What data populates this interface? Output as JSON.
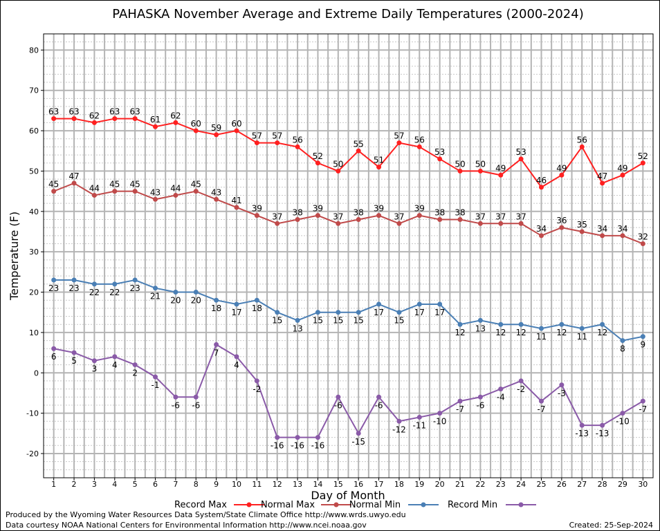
{
  "chart_data": {
    "type": "line",
    "title": "PAHASKA November Average and Extreme Daily Temperatures (2000-2024)",
    "xlabel": "Day of Month",
    "ylabel": "Temperature (F)",
    "x": [
      1,
      2,
      3,
      4,
      5,
      6,
      7,
      8,
      9,
      10,
      11,
      12,
      13,
      14,
      15,
      16,
      17,
      18,
      19,
      20,
      21,
      22,
      23,
      24,
      25,
      26,
      27,
      28,
      29,
      30
    ],
    "xlim": [
      0.5,
      30.5
    ],
    "ylim": [
      -26,
      84
    ],
    "yticks": [
      -20,
      -10,
      0,
      10,
      20,
      30,
      40,
      50,
      60,
      70,
      80
    ],
    "grid": true,
    "legend_position": "bottom",
    "series": [
      {
        "name": "Record Max",
        "color": "#ff2020",
        "label_pos": "above",
        "values": [
          63,
          63,
          62,
          63,
          63,
          61,
          62,
          60,
          59,
          60,
          57,
          57,
          56,
          52,
          50,
          55,
          51,
          57,
          56,
          53,
          50,
          50,
          49,
          53,
          46,
          49,
          56,
          47,
          49,
          52
        ]
      },
      {
        "name": "Normal Max",
        "color": "#c04a4a",
        "label_pos": "above",
        "values": [
          45,
          47,
          44,
          45,
          45,
          43,
          44,
          45,
          43,
          41,
          39,
          37,
          38,
          39,
          37,
          38,
          39,
          37,
          39,
          38,
          38,
          37,
          37,
          37,
          34,
          36,
          35,
          34,
          34,
          32
        ]
      },
      {
        "name": "Normal Min",
        "color": "#4a7fb5",
        "label_pos": "below",
        "values": [
          23,
          23,
          22,
          22,
          23,
          21,
          20,
          20,
          18,
          17,
          18,
          15,
          13,
          15,
          15,
          15,
          17,
          15,
          17,
          17,
          12,
          13,
          12,
          12,
          11,
          12,
          11,
          12,
          8,
          9
        ]
      },
      {
        "name": "Record Min",
        "color": "#8a5aa8",
        "label_pos": "below",
        "values": [
          6,
          5,
          3,
          4,
          2,
          -1,
          -6,
          -6,
          7,
          4,
          -2,
          -16,
          -16,
          -16,
          -6,
          -15,
          -6,
          -12,
          -11,
          -10,
          -7,
          -6,
          -4,
          -2,
          -7,
          -3,
          -13,
          -13,
          -10,
          -7
        ]
      }
    ]
  },
  "footer": {
    "produced_by": "Produced by the Wyoming Water Resources Data System/State Climate Office http://www.wrds.uwyo.edu",
    "data_courtesy": "Data courtesy NOAA National Centers for Environmental Information http://www.ncei.noaa.gov",
    "created": "Created:  25-Sep-2024"
  }
}
